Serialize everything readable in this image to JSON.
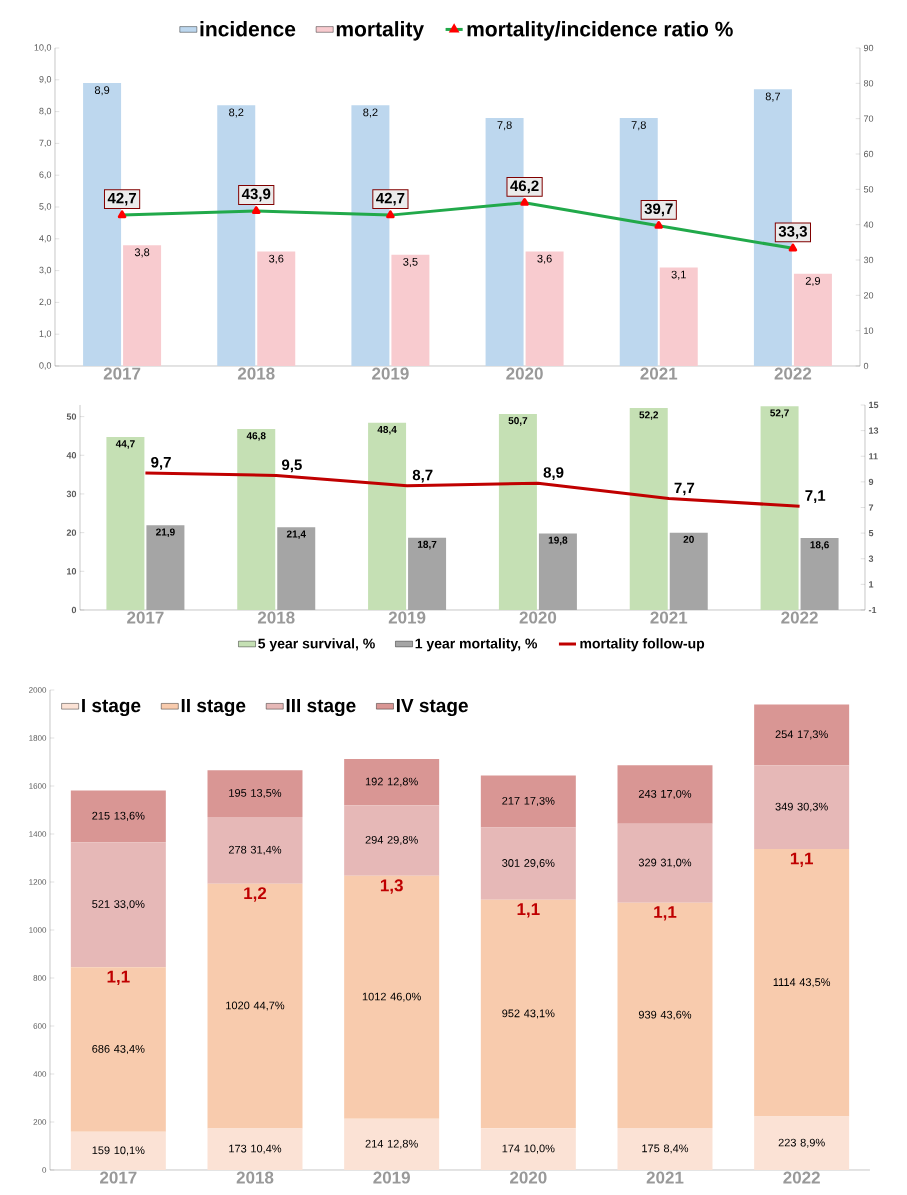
{
  "chart_data": [
    {
      "type": "bar",
      "categories": [
        "2017",
        "2018",
        "2019",
        "2020",
        "2021",
        "2022"
      ],
      "series": [
        {
          "name": "incidence",
          "color": "#bdd7ee",
          "values": [
            8.9,
            8.2,
            8.2,
            7.8,
            7.8,
            8.7
          ],
          "value_labels": [
            "8,9",
            "8,2",
            "8,2",
            "7,8",
            "7,8",
            "8,7"
          ]
        },
        {
          "name": "mortality",
          "color": "#f8cbcf",
          "values": [
            3.8,
            3.6,
            3.5,
            3.6,
            3.1,
            2.9
          ],
          "value_labels": [
            "3,8",
            "3,6",
            "3,5",
            "3,6",
            "3,1",
            "2,9"
          ]
        },
        {
          "name": "mortality/incidence ratio %",
          "type": "line",
          "axis": "y2",
          "color": "#21a94a",
          "marker": "triangle",
          "values": [
            42.7,
            43.9,
            42.7,
            46.2,
            39.7,
            33.3
          ],
          "value_labels": [
            "42,7",
            "43,9",
            "42,7",
            "46,2",
            "39,7",
            "33,3"
          ]
        }
      ],
      "ylim": [
        0,
        10
      ],
      "yticks": [
        {
          "value": 0,
          "label": "0,0"
        },
        {
          "value": 1,
          "label": "1,0"
        },
        {
          "value": 2,
          "label": "2,0"
        },
        {
          "value": 3,
          "label": "3,0"
        },
        {
          "value": 4,
          "label": "4,0"
        },
        {
          "value": 5,
          "label": "5,0"
        },
        {
          "value": 6,
          "label": "6,0"
        },
        {
          "value": 7,
          "label": "7,0"
        },
        {
          "value": 8,
          "label": "8,0"
        },
        {
          "value": 9,
          "label": "9,0"
        },
        {
          "value": 10,
          "label": "10,0"
        }
      ],
      "y2lim": [
        0,
        90
      ],
      "y2ticks": [
        0,
        10,
        20,
        30,
        40,
        50,
        60,
        70,
        80,
        90
      ],
      "legend": "top"
    },
    {
      "type": "bar",
      "categories": [
        "2017",
        "2018",
        "2019",
        "2020",
        "2021",
        "2022"
      ],
      "series": [
        {
          "name": "5 year survival, %",
          "color": "#c5e0b4",
          "values": [
            44.7,
            46.8,
            48.4,
            50.7,
            52.2,
            52.7
          ],
          "value_labels": [
            "44,7",
            "46,8",
            "48,4",
            "50,7",
            "52,2",
            "52,7"
          ]
        },
        {
          "name": "1 year mortality, %",
          "color": "#a5a5a5",
          "values": [
            21.9,
            21.4,
            18.7,
            19.8,
            20,
            18.6
          ],
          "value_labels": [
            "21,9",
            "21,4",
            "18,7",
            "19,8",
            "20",
            "18,6"
          ]
        },
        {
          "name": "mortality follow-up",
          "type": "line",
          "axis": "y2",
          "color": "#c00000",
          "values": [
            9.7,
            9.5,
            8.7,
            8.9,
            7.7,
            7.1
          ],
          "value_labels": [
            "9,7",
            "9,5",
            "8,7",
            "8,9",
            "7,7",
            "7,1"
          ]
        }
      ],
      "ylim": [
        0,
        53
      ],
      "yticks": [
        0,
        10,
        20,
        30,
        40,
        50
      ],
      "y2lim": [
        -1,
        15
      ],
      "y2ticks": [
        -1,
        1,
        3,
        5,
        7,
        9,
        11,
        13,
        15
      ],
      "legend": "bottom"
    },
    {
      "type": "bar",
      "stacked": true,
      "categories": [
        "2017",
        "2018",
        "2019",
        "2020",
        "2021",
        "2022"
      ],
      "series": [
        {
          "name": "I stage",
          "color": "#fbe2d5",
          "values": [
            159,
            173,
            214,
            174,
            175,
            223
          ],
          "value_labels": [
            "159 10,1%",
            "173 10,4%",
            "214 12,8%",
            "174 10,0%",
            "175 8,4%",
            "223 8,9%"
          ]
        },
        {
          "name": "II stage",
          "color": "#f8cbad",
          "values": [
            686,
            1020,
            1012,
            952,
            939,
            1114
          ],
          "value_labels": [
            "686 43,4%",
            "1020 44,7%",
            "1012 46,0%",
            "952 43,1%",
            "939 43,6%",
            "1114 43,5%"
          ]
        },
        {
          "name": "III stage",
          "color": "#e6b8b7",
          "values": [
            521,
            278,
            294,
            301,
            329,
            349
          ],
          "value_labels": [
            "521 33,0%",
            "278 31,4%",
            "294 29,8%",
            "301 29,6%",
            "329 31,0%",
            "349 30,3%"
          ]
        },
        {
          "name": "IV stage",
          "color": "#d99694",
          "values": [
            215,
            195,
            192,
            217,
            243,
            254
          ],
          "value_labels": [
            "215 13,6%",
            "195 13,5%",
            "192 12,8%",
            "217 17,3%",
            "243 17,0%",
            "254 17,3%"
          ]
        }
      ],
      "ylim": [
        0,
        2000
      ],
      "yticks": [
        0,
        200,
        400,
        600,
        800,
        1000,
        1200,
        1400,
        1600,
        1800,
        2000
      ],
      "annotations": [
        {
          "text": "1,1",
          "x": "2017",
          "y": 845
        },
        {
          "text": "1,2",
          "x": "2018",
          "y": 1193
        },
        {
          "text": "1,3",
          "x": "2019",
          "y": 1226
        },
        {
          "text": "1,1",
          "x": "2020",
          "y": 1126
        },
        {
          "text": "1,1",
          "x": "2021",
          "y": 1114
        },
        {
          "text": "1,1",
          "x": "2022",
          "y": 1337
        }
      ],
      "legend": "top left"
    }
  ]
}
